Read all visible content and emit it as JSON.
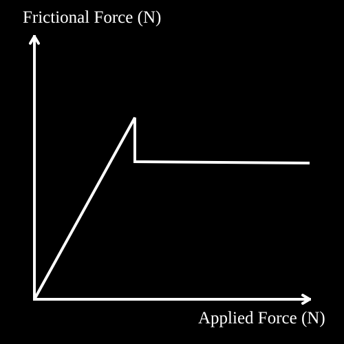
{
  "chart_data": {
    "type": "line",
    "ylabel": "Frictional Force (N)",
    "xlabel": "Applied Force (N)",
    "series": [
      {
        "x": [
          0,
          146,
          146,
          400
        ],
        "y": [
          0,
          264,
          200,
          198
        ]
      }
    ],
    "xlim": [
      0,
      400
    ],
    "ylim": [
      0,
      380
    ],
    "grid": false,
    "colors": {
      "background": "#000000",
      "axis": "#ffffff",
      "line": "#ffffff",
      "text": "#ffffff"
    }
  }
}
